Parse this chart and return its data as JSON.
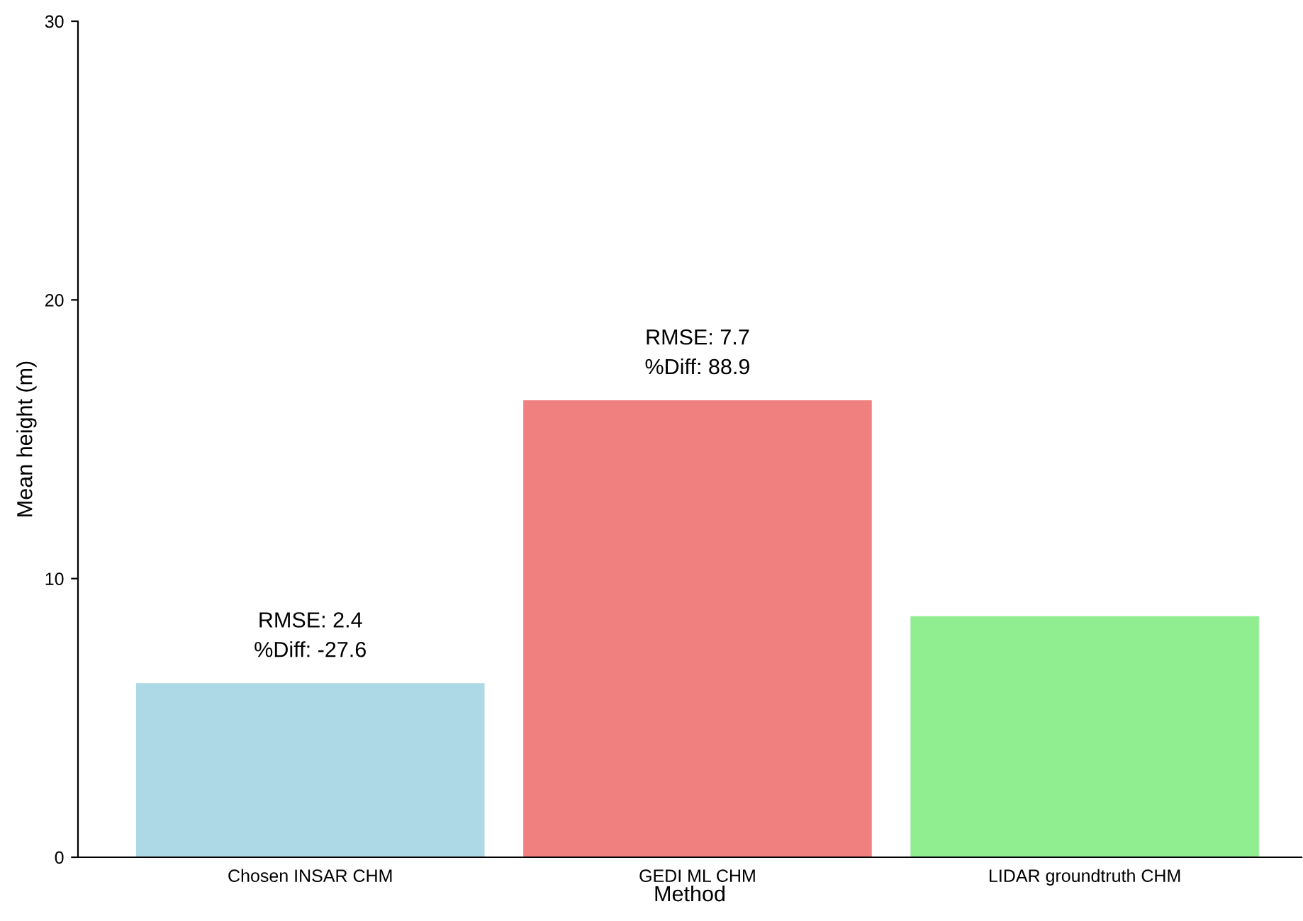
{
  "chart_data": {
    "type": "bar",
    "xlabel": "Method",
    "ylabel": "Mean height (m)",
    "categories": [
      "Chosen INSAR CHM",
      "GEDI ML CHM",
      "LIDAR groundtruth CHM"
    ],
    "values": [
      6.25,
      16.4,
      8.65
    ],
    "colors": [
      "#add8e6",
      "#f08080",
      "#90ee90"
    ],
    "ylim": [
      0,
      30
    ],
    "yticks": [
      0,
      10,
      20,
      30
    ],
    "grid": false,
    "annotations": [
      {
        "text": "RMSE: 2.4\n%Diff: -27.6",
        "x": "Chosen INSAR CHM",
        "y": 6.25
      },
      {
        "text": "RMSE: 7.7\n%Diff: 88.9",
        "x": "GEDI ML CHM",
        "y": 16.4
      }
    ]
  }
}
